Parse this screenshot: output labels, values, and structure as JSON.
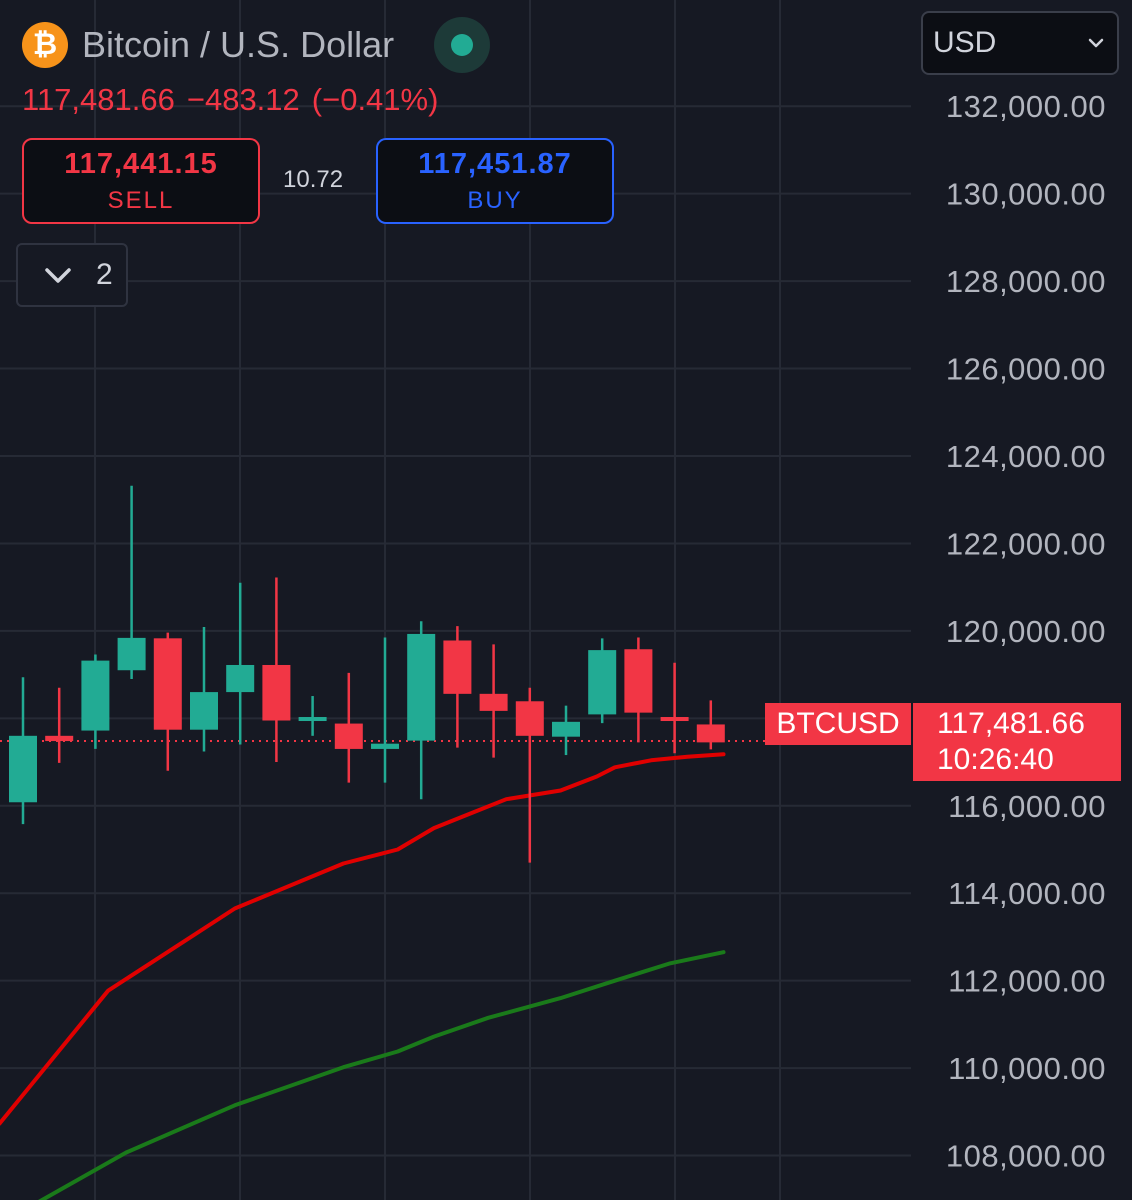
{
  "header": {
    "coin_glyph": "₿",
    "title": "Bitcoin / U.S. Dollar",
    "live_indicator_color": "#22ab94"
  },
  "quote": {
    "last": "117,481.66",
    "change": "−483.12",
    "change_pct": "(−0.41%)"
  },
  "trade": {
    "sell_price": "117,441.15",
    "sell_label": "SELL",
    "spread": "10.72",
    "buy_price": "117,451.87",
    "buy_label": "BUY"
  },
  "indicators_toggle": {
    "icon": "chevron-down-icon",
    "count": "2"
  },
  "currency_select": {
    "value": "USD",
    "icon": "chevron-down-icon"
  },
  "price_tag": {
    "symbol": "BTCUSD",
    "price": "117,481.66",
    "countdown": "10:26:40"
  },
  "colors": {
    "background": "#161923",
    "up": "#22ab94",
    "down": "#f23645",
    "ma_fast": "#e00000",
    "ma_slow": "#1a7a1a",
    "grid": "#262a35",
    "buy": "#2962ff"
  },
  "chart_data": {
    "type": "candlestick",
    "y_axis": {
      "min": 106800,
      "max": 132600,
      "ticks": [
        108000,
        110000,
        112000,
        114000,
        116000,
        118000,
        120000,
        122000,
        124000,
        126000,
        128000,
        130000,
        132000
      ],
      "tick_labels": [
        "108,000.00",
        "110,000.00",
        "112,000.00",
        "114,000.00",
        "116,000.00",
        "118,000.00",
        "120,000.00",
        "122,000.00",
        "124,000.00",
        "126,000.00",
        "128,000.00",
        "130,000.00",
        "132,000.00"
      ],
      "position": "right"
    },
    "grid": true,
    "last_price": 117481.66,
    "candles": [
      {
        "open": 116080,
        "high": 118940,
        "low": 115580,
        "close": 117600
      },
      {
        "open": 117600,
        "high": 118700,
        "low": 116980,
        "close": 117480
      },
      {
        "open": 117720,
        "high": 119460,
        "low": 117300,
        "close": 119320
      },
      {
        "open": 119100,
        "high": 123320,
        "low": 118900,
        "close": 119840
      },
      {
        "open": 119830,
        "high": 119960,
        "low": 116800,
        "close": 117740
      },
      {
        "open": 117740,
        "high": 120090,
        "low": 117240,
        "close": 118600
      },
      {
        "open": 118600,
        "high": 121100,
        "low": 117400,
        "close": 119220
      },
      {
        "open": 119220,
        "high": 121220,
        "low": 117000,
        "close": 117950
      },
      {
        "open": 117950,
        "high": 118510,
        "low": 117600,
        "close": 118030
      },
      {
        "open": 117880,
        "high": 119040,
        "low": 116530,
        "close": 117300
      },
      {
        "open": 117300,
        "high": 119850,
        "low": 116530,
        "close": 117420
      },
      {
        "open": 117490,
        "high": 120220,
        "low": 116150,
        "close": 119930
      },
      {
        "open": 119780,
        "high": 120110,
        "low": 117330,
        "close": 118560
      },
      {
        "open": 118560,
        "high": 119690,
        "low": 117100,
        "close": 118170
      },
      {
        "open": 118390,
        "high": 118700,
        "low": 114700,
        "close": 117600
      },
      {
        "open": 117580,
        "high": 118290,
        "low": 117160,
        "close": 117920
      },
      {
        "open": 118090,
        "high": 119830,
        "low": 117890,
        "close": 119560
      },
      {
        "open": 119580,
        "high": 119850,
        "low": 117450,
        "close": 118130
      },
      {
        "open": 118030,
        "high": 119270,
        "low": 117200,
        "close": 117960
      },
      {
        "open": 117860,
        "high": 118410,
        "low": 117290,
        "close": 117450
      }
    ],
    "moving_averages": [
      {
        "color": "#e00000",
        "points": [
          [
            -0.65,
            108730
          ],
          [
            2.35,
            111770
          ],
          [
            5.85,
            113650
          ],
          [
            8.85,
            114680
          ],
          [
            10.35,
            115000
          ],
          [
            11.35,
            115490
          ],
          [
            12.35,
            115820
          ],
          [
            13.35,
            116150
          ],
          [
            14.85,
            116350
          ],
          [
            15.85,
            116670
          ],
          [
            16.35,
            116880
          ],
          [
            17.35,
            117040
          ],
          [
            18.35,
            117120
          ],
          [
            19.35,
            117180
          ]
        ]
      },
      {
        "color": "#1a7a1a",
        "points": [
          [
            0.35,
            106900
          ],
          [
            2.85,
            108070
          ],
          [
            5.85,
            109150
          ],
          [
            8.85,
            110020
          ],
          [
            10.35,
            110380
          ],
          [
            11.35,
            110720
          ],
          [
            12.85,
            111150
          ],
          [
            14.85,
            111600
          ],
          [
            16.35,
            112000
          ],
          [
            17.85,
            112390
          ],
          [
            19.35,
            112650
          ]
        ]
      }
    ]
  }
}
